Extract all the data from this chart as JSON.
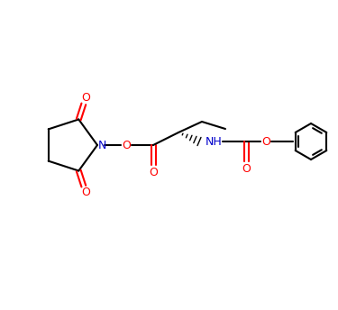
{
  "bg_color": "#ffffff",
  "bond_color": "#000000",
  "oxygen_color": "#ff0000",
  "nitrogen_color": "#0000cc",
  "line_width": 1.5,
  "figsize": [
    3.75,
    3.44
  ],
  "dpi": 100,
  "xlim": [
    0,
    375
  ],
  "ylim": [
    0,
    344
  ]
}
